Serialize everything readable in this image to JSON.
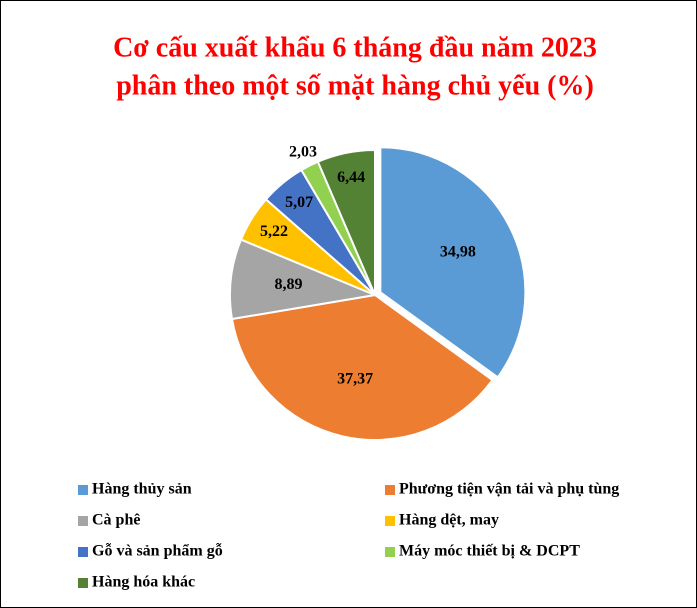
{
  "chart_data": {
    "type": "pie",
    "title": [
      "Cơ cấu xuất khẩu 6 tháng đầu năm 2023",
      "phân theo một số mặt hàng chủ yếu (%)"
    ],
    "categories": [
      "Hàng thủy sản",
      "Phương tiện vận tải và phụ tùng",
      "Cà phê",
      "Hàng dệt, may",
      "Gỗ và sản phẩm gỗ",
      "Máy móc thiết bị & DCPT",
      "Hàng hóa khác"
    ],
    "values": [
      34.98,
      37.37,
      8.89,
      5.22,
      5.07,
      2.03,
      6.44
    ],
    "value_labels": [
      "34,98",
      "37,37",
      "8,89",
      "5,22",
      "5,07",
      "2,03",
      "6,44"
    ],
    "colors": [
      "#5b9bd5",
      "#ed7d31",
      "#a5a5a5",
      "#ffc000",
      "#4472c4",
      "#92d050",
      "#548235"
    ],
    "legend": "bottom"
  }
}
